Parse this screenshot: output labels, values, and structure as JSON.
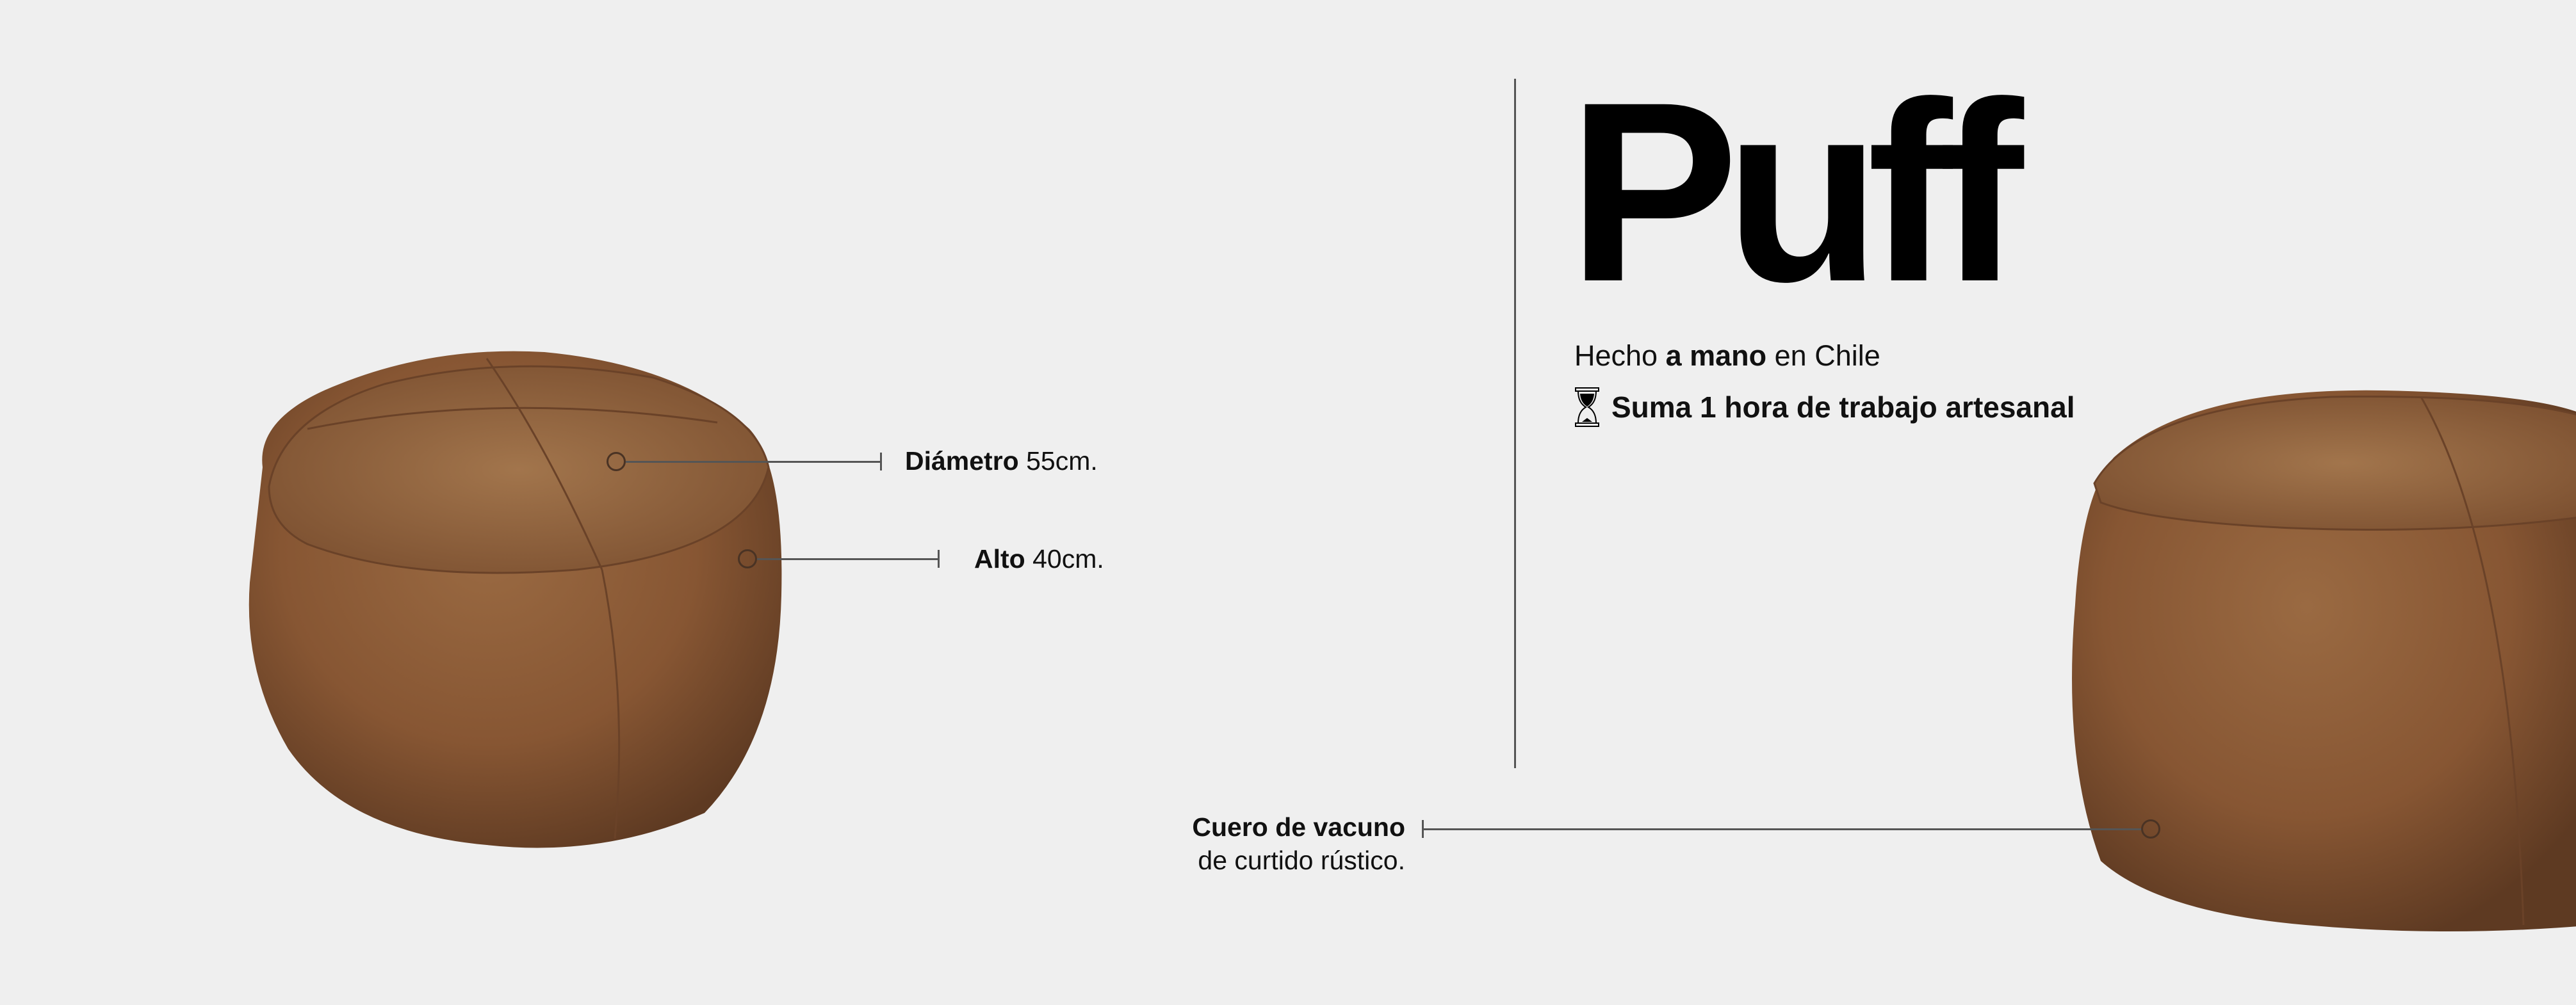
{
  "header": {
    "title": "Puff",
    "made_in_prefix": "Hecho",
    "made_in_bold": "a mano",
    "made_in_suffix": "en Chile",
    "work_icon": "hourglass-icon",
    "work_hours": "Suma 1 hora de trabajo artesanal"
  },
  "specs": {
    "diameter_label": "Diámetro",
    "diameter_value": "55cm.",
    "height_label": "Alto",
    "height_value": "40cm.",
    "material_label": "Cuero de vacuno",
    "material_detail": "de curtido rústico."
  },
  "colors": {
    "background": "#efefef",
    "leather": "#8a5a36",
    "text": "#111111"
  }
}
